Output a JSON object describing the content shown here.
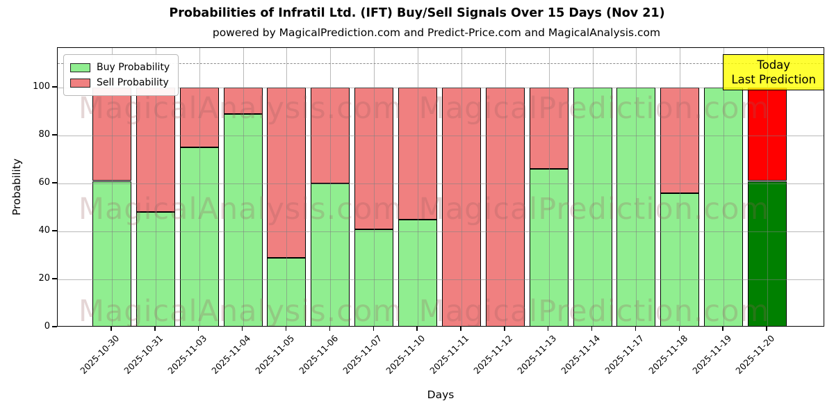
{
  "title": "Probabilities of Infratil Ltd. (IFT) Buy/Sell Signals Over 15 Days (Nov 21)",
  "subtitle": "powered by MagicalPrediction.com and Predict-Price.com and MagicalAnalysis.com",
  "chart_data": {
    "type": "bar",
    "stacked": true,
    "title": "Probabilities of Infratil Ltd. (IFT) Buy/Sell Signals Over 15 Days (Nov 21)",
    "xlabel": "Days",
    "ylabel": "Probability",
    "categories": [
      "2025-10-30",
      "2025-10-31",
      "2025-11-03",
      "2025-11-04",
      "2025-11-05",
      "2025-11-06",
      "2025-11-07",
      "2025-11-10",
      "2025-11-11",
      "2025-11-12",
      "2025-11-13",
      "2025-11-14",
      "2025-11-17",
      "2025-11-18",
      "2025-11-19",
      "2025-11-20"
    ],
    "series": [
      {
        "name": "Buy Probability",
        "values": [
          61,
          48,
          75,
          89,
          29,
          60,
          41,
          45,
          0,
          0,
          66,
          100,
          100,
          56,
          100,
          61
        ],
        "color": "#90EE90",
        "highlight_color": "#008000"
      },
      {
        "name": "Sell Probability",
        "values": [
          39,
          52,
          25,
          11,
          71,
          40,
          59,
          55,
          100,
          100,
          34,
          0,
          0,
          44,
          0,
          39
        ],
        "color": "#F08080",
        "highlight_color": "#FF0000"
      }
    ],
    "highlight_index": 15,
    "y_ticks": [
      0,
      20,
      40,
      60,
      80,
      100
    ],
    "ylim": [
      0,
      116.5
    ],
    "reference_line": {
      "value": 110,
      "style": "dashed",
      "color": "#8a8a8a"
    },
    "grid": true,
    "legend_position": "upper-left",
    "annotation": {
      "lines": [
        "Today",
        "Last Prediction"
      ],
      "bg_color": "#FFFF00"
    },
    "watermarks": [
      "MagicalAnalysis.com",
      "MagicalPrediction.com"
    ]
  }
}
